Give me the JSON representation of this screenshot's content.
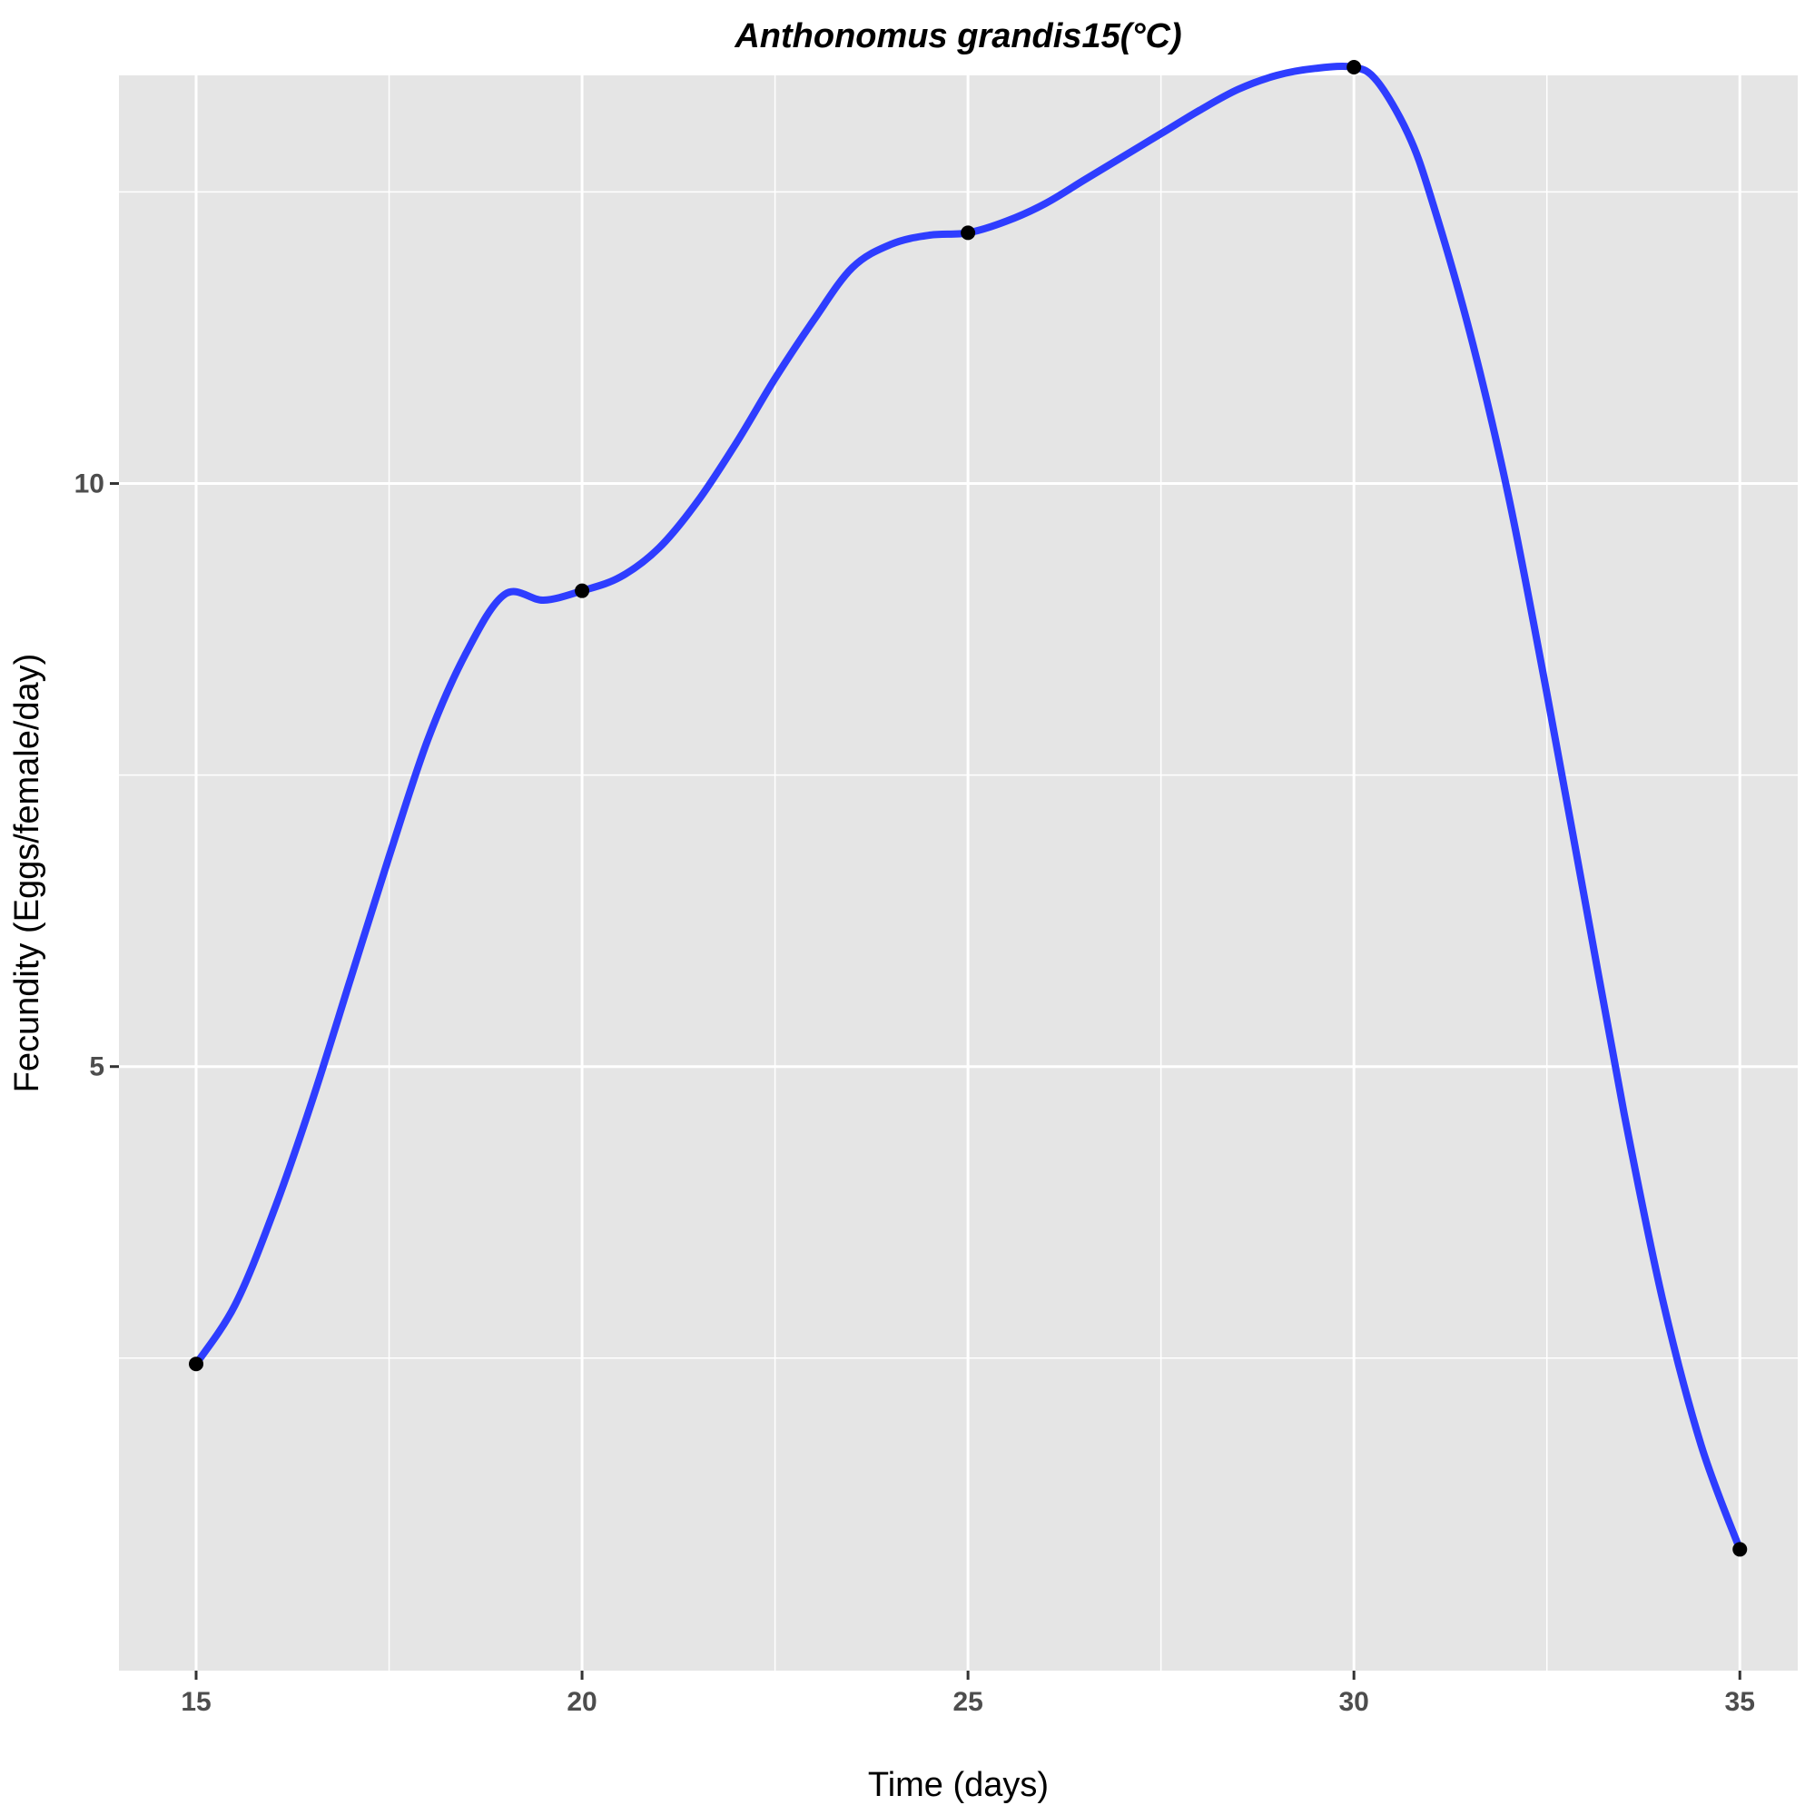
{
  "chart_data": {
    "type": "line",
    "title": "Anthonomus grandis15(°C)",
    "xlabel": "Time (days)",
    "ylabel": "Fecundity (Eggs/female/day)",
    "xlim": [
      14,
      35.75
    ],
    "ylim": [
      -0.18,
      13.5
    ],
    "x_ticks": [
      15,
      20,
      25,
      30,
      35
    ],
    "y_ticks": [
      5,
      10
    ],
    "x_minor_ticks": [
      17.5,
      22.5,
      27.5,
      32.5
    ],
    "y_minor_ticks": [
      2.5,
      7.5,
      12.5
    ],
    "grid": true,
    "legend": "none",
    "colors": {
      "panel": "#e5e5e5",
      "line": "#2e3dff",
      "points": "#000000"
    },
    "points": [
      {
        "x": 15,
        "y": 2.45
      },
      {
        "x": 20,
        "y": 9.08
      },
      {
        "x": 25,
        "y": 12.15
      },
      {
        "x": 30,
        "y": 13.57
      },
      {
        "x": 35,
        "y": 0.86
      }
    ],
    "series": [
      {
        "values": [
          [
            15,
            2.45
          ],
          [
            15.5,
            2.95
          ],
          [
            16,
            3.75
          ],
          [
            16.5,
            4.7
          ],
          [
            17,
            5.75
          ],
          [
            17.5,
            6.8
          ],
          [
            18,
            7.8
          ],
          [
            18.5,
            8.55
          ],
          [
            19,
            9.05
          ],
          [
            19.5,
            9.0
          ],
          [
            20,
            9.08
          ],
          [
            20.5,
            9.2
          ],
          [
            21,
            9.45
          ],
          [
            21.5,
            9.85
          ],
          [
            22,
            10.35
          ],
          [
            22.5,
            10.9
          ],
          [
            23,
            11.4
          ],
          [
            23.5,
            11.85
          ],
          [
            24,
            12.05
          ],
          [
            24.5,
            12.13
          ],
          [
            25,
            12.15
          ],
          [
            25.5,
            12.25
          ],
          [
            26,
            12.4
          ],
          [
            26.5,
            12.6
          ],
          [
            27,
            12.8
          ],
          [
            27.5,
            13.0
          ],
          [
            28,
            13.2
          ],
          [
            28.5,
            13.38
          ],
          [
            29,
            13.5
          ],
          [
            29.5,
            13.56
          ],
          [
            30,
            13.57
          ],
          [
            30.3,
            13.45
          ],
          [
            30.7,
            13.0
          ],
          [
            31,
            12.45
          ],
          [
            31.5,
            11.3
          ],
          [
            32,
            9.9
          ],
          [
            32.5,
            8.2
          ],
          [
            33,
            6.4
          ],
          [
            33.5,
            4.6
          ],
          [
            34,
            3.0
          ],
          [
            34.5,
            1.75
          ],
          [
            35,
            0.86
          ]
        ]
      }
    ]
  }
}
